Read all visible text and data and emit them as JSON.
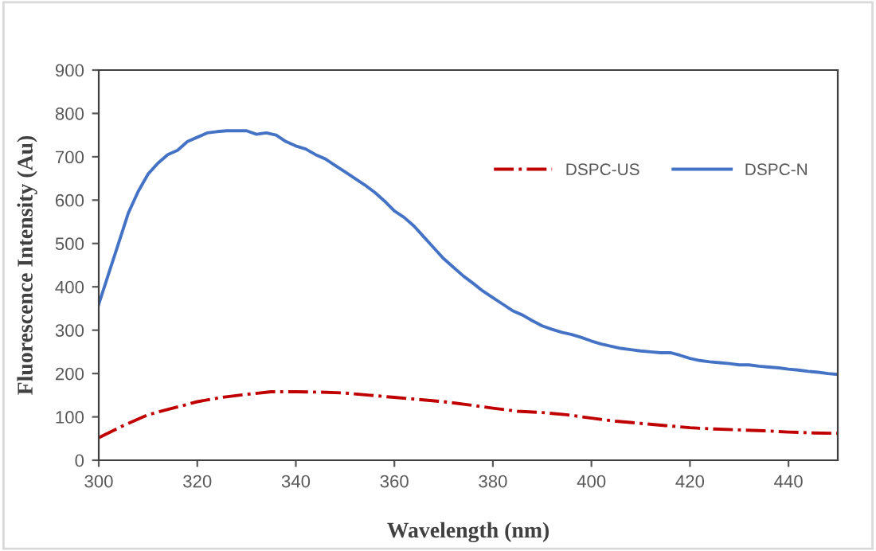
{
  "chart_data": {
    "type": "line",
    "xlabel": "Wavelength (nm)",
    "ylabel": "Fluorescence Intensity (Au)",
    "xlim": [
      300,
      450
    ],
    "xticks": [
      300,
      320,
      340,
      360,
      380,
      400,
      420,
      440
    ],
    "ylim": [
      0,
      900
    ],
    "yticks": [
      0,
      100,
      200,
      300,
      400,
      500,
      600,
      700,
      800,
      900
    ],
    "grid": false,
    "legend": "top right",
    "marker": "none",
    "series": [
      {
        "name": "DSPC-US",
        "color": "#c00000",
        "line_style": "dashdot",
        "x": [
          300,
          305,
          310,
          315,
          320,
          325,
          330,
          335,
          340,
          345,
          350,
          355,
          360,
          365,
          370,
          375,
          380,
          385,
          390,
          395,
          400,
          405,
          410,
          415,
          420,
          425,
          430,
          435,
          440,
          445,
          450
        ],
        "values": [
          52,
          80,
          105,
          120,
          135,
          145,
          152,
          158,
          158,
          157,
          155,
          150,
          145,
          140,
          135,
          128,
          120,
          113,
          110,
          105,
          97,
          90,
          85,
          80,
          75,
          72,
          70,
          68,
          65,
          63,
          62
        ]
      },
      {
        "name": "DSPC-N",
        "color": "#4472c4",
        "line_style": "solid",
        "x": [
          300,
          302,
          304,
          306,
          308,
          310,
          312,
          314,
          316,
          318,
          320,
          322,
          324,
          326,
          328,
          330,
          332,
          334,
          336,
          338,
          340,
          342,
          344,
          346,
          348,
          350,
          352,
          354,
          356,
          358,
          360,
          362,
          364,
          366,
          368,
          370,
          372,
          374,
          376,
          378,
          380,
          382,
          384,
          386,
          388,
          390,
          392,
          394,
          396,
          398,
          400,
          402,
          404,
          406,
          408,
          410,
          412,
          414,
          416,
          418,
          420,
          422,
          424,
          426,
          428,
          430,
          432,
          434,
          436,
          438,
          440,
          442,
          444,
          446,
          448,
          450
        ],
        "values": [
          360,
          430,
          500,
          570,
          620,
          660,
          685,
          705,
          715,
          735,
          745,
          755,
          758,
          760,
          760,
          760,
          752,
          755,
          750,
          735,
          725,
          718,
          705,
          695,
          680,
          665,
          650,
          635,
          618,
          598,
          575,
          560,
          540,
          515,
          490,
          465,
          445,
          425,
          408,
          390,
          375,
          360,
          345,
          335,
          322,
          310,
          302,
          295,
          290,
          283,
          275,
          268,
          263,
          258,
          255,
          252,
          250,
          248,
          248,
          242,
          235,
          230,
          227,
          225,
          223,
          220,
          220,
          217,
          215,
          213,
          210,
          208,
          205,
          203,
          200,
          198
        ]
      }
    ]
  }
}
